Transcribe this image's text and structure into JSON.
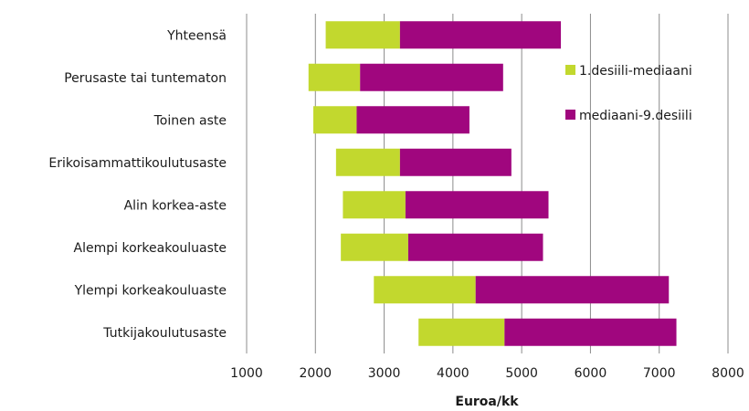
{
  "chart_data": {
    "type": "bar",
    "orientation": "horizontal",
    "stacked": true,
    "categories": [
      "Yhteensä",
      "Perusaste tai tuntematon",
      "Toinen aste",
      "Erikoisammattikoulutusaste",
      "Alin korkea-aste",
      "Alempi korkeakouluaste",
      "Ylempi korkeakouluaste",
      "Tutkijakoulutusaste"
    ],
    "series": [
      {
        "name": "1.desiili-mediaani",
        "color": "#c2d82e",
        "start": [
          2150,
          1900,
          1970,
          2300,
          2400,
          2370,
          2850,
          3500
        ],
        "end": [
          3230,
          2650,
          2600,
          3230,
          3310,
          3350,
          4330,
          4750
        ]
      },
      {
        "name": "mediaani-9.desiili",
        "color": "#a0067e",
        "start": [
          3230,
          2650,
          2600,
          3230,
          3310,
          3350,
          4330,
          4750
        ],
        "end": [
          5570,
          4730,
          4240,
          4850,
          5390,
          5310,
          7140,
          7250
        ]
      }
    ],
    "xlabel": "Euroa/kk",
    "xlim": [
      1000,
      8000
    ],
    "xticks": [
      "1000",
      "2000",
      "3000",
      "4000",
      "5000",
      "6000",
      "7000",
      "8000"
    ],
    "grid": "vertical",
    "legend_position": "right"
  }
}
